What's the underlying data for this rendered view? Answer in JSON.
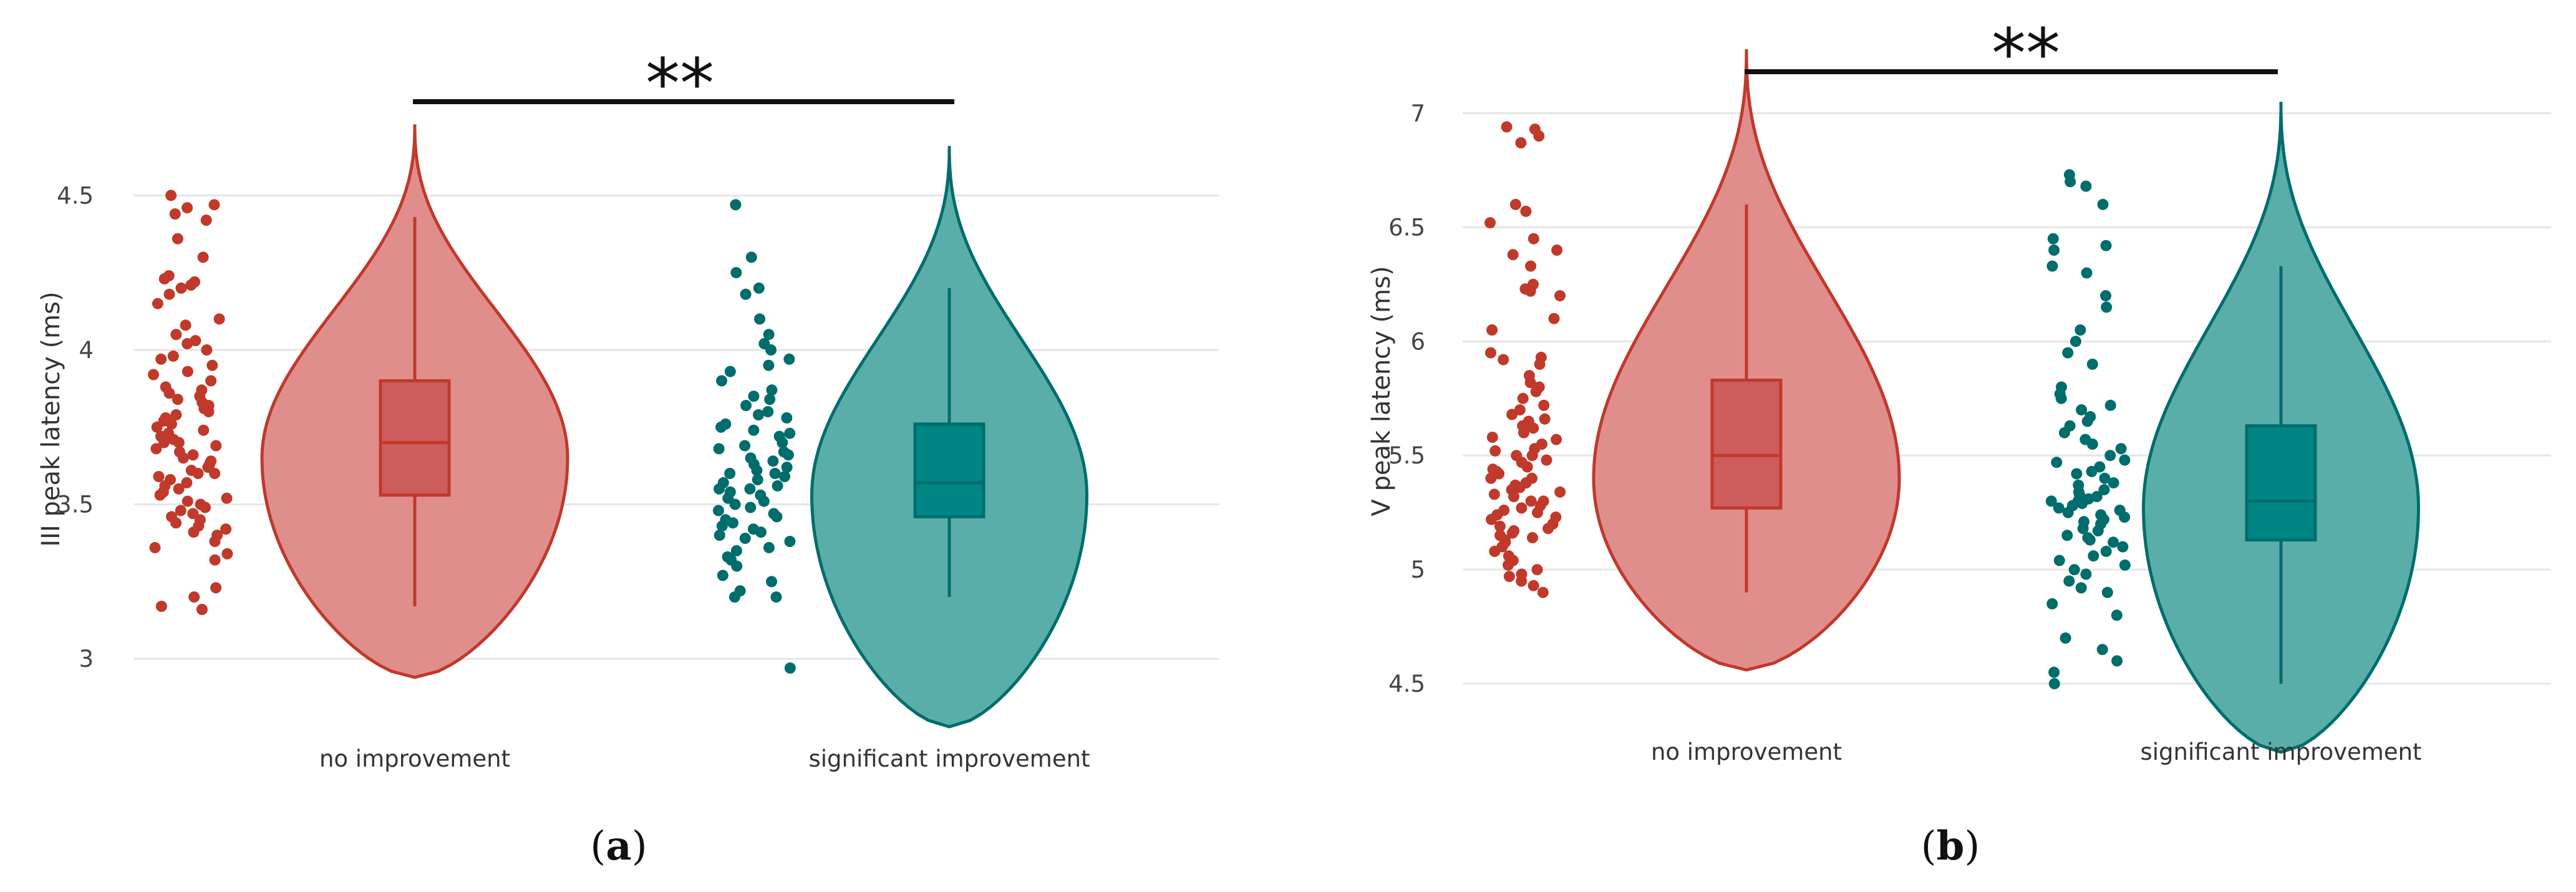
{
  "chart_data": [
    {
      "type": "violin",
      "panel_label": {
        "open": "(",
        "letter": "a",
        "close": ")"
      },
      "ylabel": "III peak latency (ms)",
      "ylim": [
        2.75,
        4.85
      ],
      "yticks": [
        3,
        3.5,
        4,
        4.5
      ],
      "ytick_labels": [
        "3",
        "3.5",
        "4",
        "4.5"
      ],
      "grid": true,
      "significance": "**",
      "categories": [
        "no improvement",
        "significant improvement"
      ],
      "series": [
        {
          "name": "no improvement",
          "color": "#c0392b",
          "fill": "#e08e8b",
          "box_fill": "#cd5c5c",
          "violin": {
            "min": 2.94,
            "max": 4.73,
            "mode": 3.65,
            "width_scale": 1.0
          },
          "box": {
            "q1": 3.53,
            "median": 3.7,
            "q3": 3.9,
            "whisker_low": 3.17,
            "whisker_high": 4.43
          },
          "points": [
            4.5,
            4.47,
            4.46,
            4.44,
            4.42,
            4.36,
            4.3,
            4.24,
            4.23,
            4.22,
            4.21,
            4.2,
            4.18,
            4.15,
            4.1,
            4.08,
            4.05,
            4.03,
            4.02,
            4.0,
            3.98,
            3.97,
            3.95,
            3.93,
            3.92,
            3.9,
            3.88,
            3.87,
            3.86,
            3.85,
            3.84,
            3.83,
            3.82,
            3.81,
            3.8,
            3.79,
            3.78,
            3.77,
            3.76,
            3.75,
            3.74,
            3.73,
            3.72,
            3.71,
            3.7,
            3.7,
            3.69,
            3.68,
            3.67,
            3.66,
            3.65,
            3.64,
            3.63,
            3.62,
            3.61,
            3.6,
            3.6,
            3.59,
            3.58,
            3.57,
            3.56,
            3.55,
            3.54,
            3.53,
            3.52,
            3.51,
            3.5,
            3.49,
            3.48,
            3.47,
            3.46,
            3.45,
            3.44,
            3.43,
            3.42,
            3.41,
            3.4,
            3.38,
            3.36,
            3.34,
            3.32,
            3.23,
            3.2,
            3.17,
            3.16
          ]
        },
        {
          "name": "significant improvement",
          "color": "#006d6d",
          "fill": "#5aaeaa",
          "box_fill": "#008585",
          "violin": {
            "min": 2.78,
            "max": 4.66,
            "mode": 3.53,
            "width_scale": 0.9
          },
          "box": {
            "q1": 3.46,
            "median": 3.57,
            "q3": 3.76,
            "whisker_low": 3.2,
            "whisker_high": 4.2
          },
          "points": [
            4.47,
            4.3,
            4.25,
            4.2,
            4.18,
            4.1,
            4.05,
            4.02,
            4.0,
            3.97,
            3.95,
            3.93,
            3.9,
            3.87,
            3.85,
            3.84,
            3.82,
            3.8,
            3.79,
            3.78,
            3.76,
            3.75,
            3.74,
            3.73,
            3.72,
            3.7,
            3.69,
            3.68,
            3.67,
            3.66,
            3.65,
            3.64,
            3.63,
            3.62,
            3.61,
            3.6,
            3.6,
            3.59,
            3.58,
            3.57,
            3.56,
            3.55,
            3.55,
            3.54,
            3.53,
            3.52,
            3.51,
            3.5,
            3.49,
            3.48,
            3.47,
            3.46,
            3.45,
            3.44,
            3.43,
            3.42,
            3.41,
            3.4,
            3.39,
            3.38,
            3.36,
            3.35,
            3.33,
            3.32,
            3.3,
            3.27,
            3.25,
            3.22,
            3.2,
            3.2,
            2.97
          ]
        }
      ]
    },
    {
      "type": "violin",
      "panel_label": {
        "open": "(",
        "letter": "b",
        "close": ")"
      },
      "ylabel": "V peak latency (ms)",
      "ylim": [
        4.38,
        7.25
      ],
      "yticks": [
        4.5,
        5,
        5.5,
        6,
        6.5,
        7
      ],
      "ytick_labels": [
        "4.5",
        "5",
        "5.5",
        "6",
        "6.5",
        "7"
      ],
      "grid": true,
      "significance": "**",
      "categories": [
        "no improvement",
        "significant improvement"
      ],
      "series": [
        {
          "name": "no improvement",
          "color": "#c0392b",
          "fill": "#e08e8b",
          "box_fill": "#cd5c5c",
          "violin": {
            "min": 4.56,
            "max": 7.28,
            "mode": 5.4,
            "width_scale": 1.0
          },
          "box": {
            "q1": 5.27,
            "median": 5.5,
            "q3": 5.83,
            "whisker_low": 4.9,
            "whisker_high": 6.6
          },
          "points": [
            6.94,
            6.93,
            6.9,
            6.87,
            6.6,
            6.57,
            6.52,
            6.45,
            6.4,
            6.38,
            6.33,
            6.25,
            6.23,
            6.22,
            6.2,
            6.1,
            6.05,
            5.95,
            5.93,
            5.92,
            5.9,
            5.85,
            5.82,
            5.8,
            5.78,
            5.75,
            5.72,
            5.7,
            5.68,
            5.66,
            5.65,
            5.63,
            5.62,
            5.6,
            5.58,
            5.57,
            5.55,
            5.53,
            5.52,
            5.5,
            5.5,
            5.48,
            5.47,
            5.45,
            5.44,
            5.43,
            5.42,
            5.4,
            5.4,
            5.38,
            5.37,
            5.36,
            5.35,
            5.34,
            5.33,
            5.32,
            5.3,
            5.3,
            5.28,
            5.27,
            5.26,
            5.25,
            5.24,
            5.23,
            5.22,
            5.2,
            5.19,
            5.18,
            5.17,
            5.16,
            5.15,
            5.14,
            5.13,
            5.12,
            5.1,
            5.08,
            5.06,
            5.04,
            5.02,
            5.0,
            4.98,
            4.97,
            4.95,
            4.93,
            4.9
          ]
        },
        {
          "name": "significant improvement",
          "color": "#006d6d",
          "fill": "#5aaeaa",
          "box_fill": "#008585",
          "violin": {
            "min": 4.2,
            "max": 7.05,
            "mode": 5.27,
            "width_scale": 0.9
          },
          "box": {
            "q1": 5.13,
            "median": 5.3,
            "q3": 5.63,
            "whisker_low": 4.5,
            "whisker_high": 6.33
          },
          "points": [
            6.73,
            6.7,
            6.68,
            6.6,
            6.45,
            6.42,
            6.4,
            6.33,
            6.3,
            6.2,
            6.15,
            6.05,
            6.0,
            5.95,
            5.9,
            5.8,
            5.77,
            5.75,
            5.72,
            5.7,
            5.67,
            5.65,
            5.63,
            5.6,
            5.57,
            5.55,
            5.53,
            5.5,
            5.48,
            5.47,
            5.45,
            5.43,
            5.42,
            5.4,
            5.38,
            5.37,
            5.35,
            5.34,
            5.33,
            5.32,
            5.31,
            5.3,
            5.3,
            5.29,
            5.28,
            5.27,
            5.26,
            5.25,
            5.24,
            5.23,
            5.22,
            5.21,
            5.2,
            5.18,
            5.17,
            5.15,
            5.14,
            5.13,
            5.12,
            5.1,
            5.08,
            5.06,
            5.04,
            5.02,
            5.0,
            4.98,
            4.95,
            4.92,
            4.9,
            4.85,
            4.8,
            4.7,
            4.65,
            4.6,
            4.55,
            4.5
          ]
        }
      ]
    }
  ]
}
